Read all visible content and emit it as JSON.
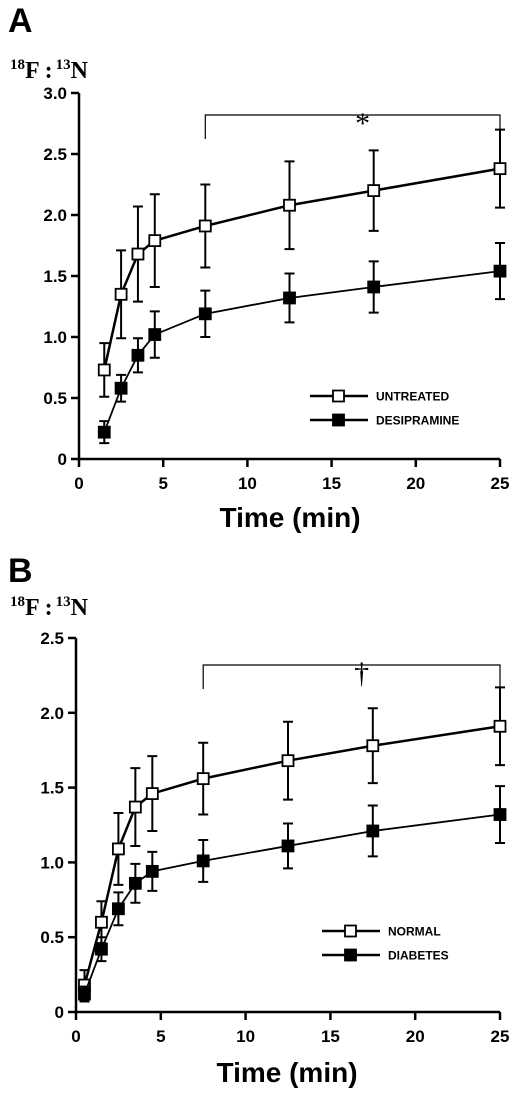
{
  "chart_data": [
    {
      "type": "line",
      "panel_label": "A",
      "ylabel": {
        "sup1": "18",
        "base1": "F",
        "sep": ":",
        "sup2": "13",
        "base2": "N"
      },
      "xlabel": "Time (min)",
      "xlim": [
        0,
        25
      ],
      "ylim": [
        0,
        3.0
      ],
      "xticks": [
        "0",
        "5",
        "10",
        "15",
        "20",
        "25"
      ],
      "yticks": [
        "0",
        "0.5",
        "1.0",
        "1.5",
        "2.0",
        "2.5",
        "3.0"
      ],
      "x": [
        1.5,
        2.5,
        3.5,
        4.5,
        7.5,
        12.5,
        17.5,
        25
      ],
      "series": [
        {
          "name": "UNTREATED",
          "marker": "open-square",
          "color": "#000000",
          "values": [
            0.73,
            1.35,
            1.68,
            1.79,
            1.91,
            2.08,
            2.2,
            2.38
          ],
          "errors": [
            0.22,
            0.36,
            0.39,
            0.38,
            0.34,
            0.36,
            0.33,
            0.32
          ]
        },
        {
          "name": "DESIPRAMINE",
          "marker": "filled-square",
          "color": "#000000",
          "values": [
            0.22,
            0.58,
            0.85,
            1.02,
            1.19,
            1.32,
            1.41,
            1.54
          ],
          "errors": [
            0.09,
            0.11,
            0.14,
            0.19,
            0.19,
            0.2,
            0.21,
            0.23
          ]
        }
      ],
      "significance": {
        "symbol": "*",
        "x_start": 7.5,
        "x_end": 25
      },
      "legend_position": "lower-right",
      "grid": false
    },
    {
      "type": "line",
      "panel_label": "B",
      "ylabel": {
        "sup1": "18",
        "base1": "F",
        "sep": ":",
        "sup2": "13",
        "base2": "N"
      },
      "xlabel": "Time (min)",
      "xlim": [
        0,
        25
      ],
      "ylim": [
        0,
        2.5
      ],
      "xticks": [
        "0",
        "5",
        "10",
        "15",
        "20",
        "25"
      ],
      "yticks": [
        "0",
        "0.5",
        "1.0",
        "1.5",
        "2.0",
        "2.5"
      ],
      "x": [
        0.5,
        1.5,
        2.5,
        3.5,
        4.5,
        7.5,
        12.5,
        17.5,
        25
      ],
      "series": [
        {
          "name": "NORMAL",
          "marker": "open-square",
          "color": "#000000",
          "values": [
            0.18,
            0.6,
            1.09,
            1.37,
            1.46,
            1.56,
            1.68,
            1.78,
            1.91
          ],
          "errors": [
            0.1,
            0.14,
            0.24,
            0.26,
            0.25,
            0.24,
            0.26,
            0.25,
            0.26
          ]
        },
        {
          "name": "DIABETES",
          "marker": "filled-square",
          "color": "#000000",
          "values": [
            0.12,
            0.42,
            0.69,
            0.86,
            0.94,
            1.01,
            1.11,
            1.21,
            1.32
          ],
          "errors": [
            0.05,
            0.08,
            0.11,
            0.13,
            0.13,
            0.14,
            0.15,
            0.17,
            0.19
          ]
        }
      ],
      "significance": {
        "symbol": "†",
        "x_start": 7.5,
        "x_end": 25
      },
      "legend_position": "lower-right",
      "grid": false
    }
  ]
}
